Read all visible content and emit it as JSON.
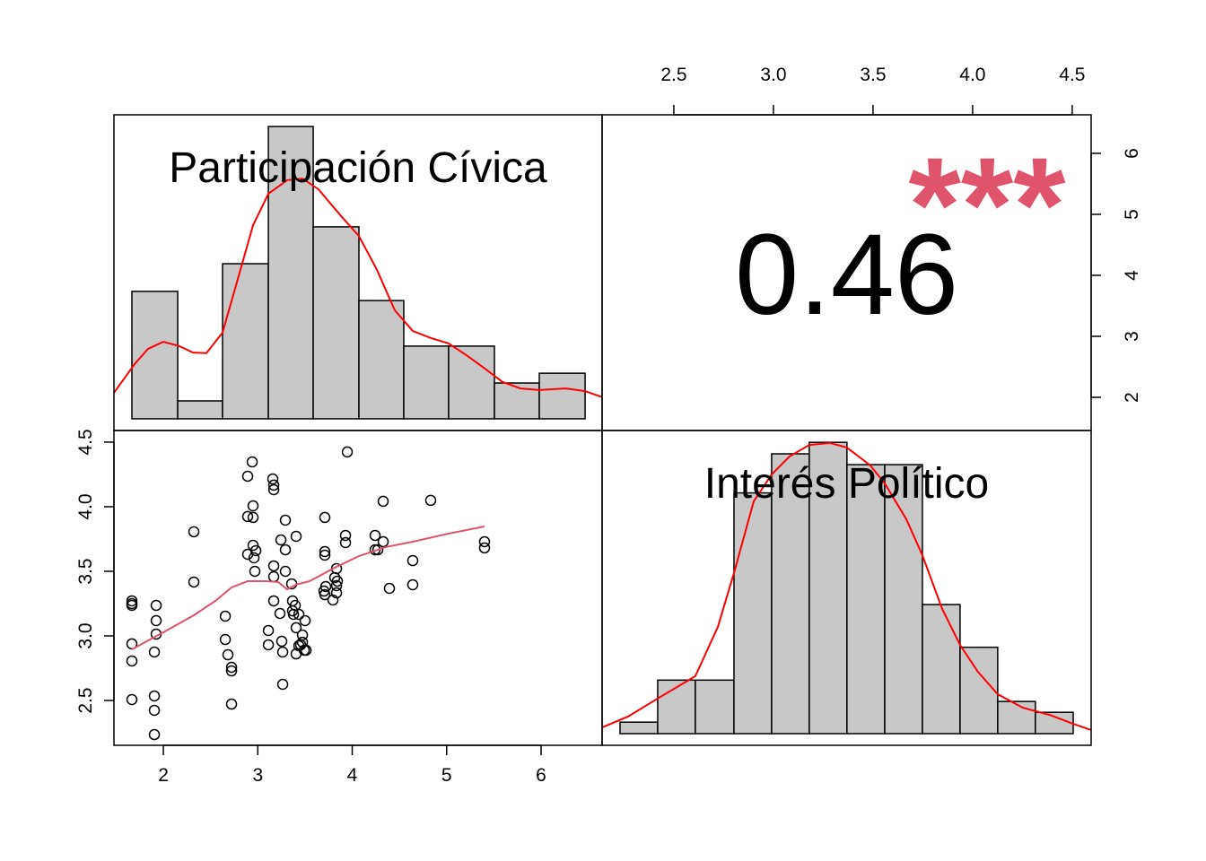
{
  "chart_data": [
    {
      "type": "histogram",
      "title": "Participación Cívica",
      "color": "#c8c8c8",
      "bins": [
        1.667,
        2.152,
        2.627,
        3.112,
        3.587,
        4.071,
        4.546,
        5.021,
        5.506,
        5.981,
        6.466
      ],
      "values": [
        0.235,
        0.033,
        0.286,
        0.539,
        0.354,
        0.218,
        0.134,
        0.134,
        0.066,
        0.084
      ],
      "xlim": [
        1.477,
        6.646
      ],
      "ylim": [
        -0.0216,
        0.5606
      ],
      "curve": {
        "color": "#ff0000",
        "x": [
          1.477,
          1.696,
          1.838,
          2.0,
          2.171,
          2.314,
          2.456,
          2.627,
          2.789,
          2.95,
          3.112,
          3.311,
          3.473,
          3.644,
          3.881,
          4.071,
          4.261,
          4.451,
          4.641,
          4.831,
          5.021,
          5.211,
          5.401,
          5.591,
          5.781,
          5.981,
          6.257,
          6.466,
          6.646
        ],
        "values": [
          0.048,
          0.101,
          0.129,
          0.142,
          0.134,
          0.122,
          0.121,
          0.159,
          0.258,
          0.357,
          0.415,
          0.44,
          0.443,
          0.423,
          0.374,
          0.337,
          0.275,
          0.2,
          0.162,
          0.149,
          0.139,
          0.117,
          0.093,
          0.068,
          0.056,
          0.053,
          0.056,
          0.051,
          0.04
        ]
      }
    },
    {
      "type": "correlation",
      "value": 0.46,
      "stars": "***",
      "stars_color": "#df536b",
      "xlim": [
        2.14,
        4.595
      ],
      "xticks": [
        2.5,
        {
          "value": 3,
          "label": "3.0"
        },
        3.5,
        {
          "value": 4,
          "label": "4.0"
        },
        4.5
      ],
      "xaxis": "top",
      "ylim": [
        1.456,
        6.632
      ],
      "yticks": [
        2,
        3,
        4,
        5,
        6
      ],
      "yaxis": "right"
    },
    {
      "type": "scatter",
      "x": [
        1.667,
        1.667,
        1.667,
        1.667,
        1.667,
        1.667,
        1.924,
        1.924,
        1.924,
        1.905,
        1.905,
        1.905,
        1.905,
        2.323,
        2.323,
        2.656,
        2.656,
        2.684,
        2.722,
        2.722,
        2.722,
        2.893,
        2.893,
        2.893,
        2.941,
        2.95,
        2.95,
        2.95,
        2.96,
        2.969,
        2.979,
        3.112,
        3.112,
        3.159,
        3.169,
        3.169,
        3.169,
        3.169,
        3.169,
        3.235,
        3.245,
        3.254,
        3.264,
        3.264,
        3.292,
        3.292,
        3.292,
        3.359,
        3.368,
        3.368,
        3.378,
        3.397,
        3.406,
        3.406,
        3.406,
        3.435,
        3.435,
        3.454,
        3.473,
        3.473,
        3.492,
        3.501,
        3.511,
        3.701,
        3.71,
        3.71,
        3.71,
        3.71,
        3.72,
        3.796,
        3.815,
        3.834,
        3.834,
        3.834,
        3.843,
        3.929,
        3.929,
        3.948,
        4.242,
        4.242,
        4.271,
        4.328,
        4.328,
        4.394,
        4.641,
        4.641,
        4.831,
        5.401,
        5.401
      ],
      "values": [
        3.271,
        3.25,
        3.236,
        2.938,
        2.806,
        2.507,
        3.236,
        3.118,
        3.014,
        2.875,
        2.535,
        2.424,
        2.236,
        3.806,
        3.417,
        3.153,
        2.972,
        2.854,
        2.757,
        2.729,
        2.472,
        4.236,
        3.924,
        3.632,
        4.347,
        4.007,
        3.917,
        3.701,
        3.604,
        3.5,
        3.66,
        3.042,
        2.931,
        4.215,
        4.167,
        4.132,
        3.542,
        3.458,
        3.271,
        3.174,
        3.743,
        2.958,
        2.875,
        2.625,
        3.896,
        3.667,
        3.5,
        3.403,
        3.271,
        3.194,
        3.167,
        3.236,
        3.771,
        3.063,
        2.861,
        3.167,
        2.924,
        2.931,
        3.007,
        2.951,
        2.889,
        3.118,
        2.889,
        3.347,
        3.917,
        3.653,
        3.625,
        3.319,
        3.382,
        3.278,
        3.451,
        3.521,
        3.389,
        3.333,
        3.424,
        3.778,
        3.722,
        4.424,
        3.778,
        3.667,
        3.667,
        3.729,
        4.042,
        3.368,
        3.583,
        3.396,
        4.049,
        3.729,
        3.681
      ],
      "xlim": [
        1.477,
        6.646
      ],
      "xticks": [
        2,
        3,
        4,
        5,
        6
      ],
      "xaxis": "bottom",
      "ylim": [
        2.153,
        4.59
      ],
      "yticks": [
        2.5,
        {
          "value": 3,
          "label": "3.0"
        },
        3.5,
        {
          "value": 4,
          "label": "4.0"
        },
        4.5
      ],
      "yaxis": "left",
      "curve": {
        "color": "#df536b",
        "x": [
          1.667,
          2.0,
          2.323,
          2.551,
          2.722,
          2.893,
          3.074,
          3.216,
          3.311,
          3.406,
          3.549,
          3.691,
          3.834,
          4.071,
          4.356,
          4.641,
          5.021,
          5.401
        ],
        "values": [
          2.896,
          3.028,
          3.16,
          3.271,
          3.375,
          3.424,
          3.424,
          3.417,
          3.361,
          3.396,
          3.424,
          3.479,
          3.535,
          3.618,
          3.688,
          3.729,
          3.792,
          3.847
        ]
      }
    },
    {
      "type": "histogram",
      "title": "Interés Político",
      "color": "#c8c8c8",
      "bins": [
        2.23,
        2.419,
        2.608,
        2.802,
        2.991,
        3.18,
        3.369,
        3.559,
        3.748,
        3.937,
        4.126,
        4.315,
        4.505
      ],
      "values": [
        0.035,
        0.163,
        0.163,
        0.733,
        0.852,
        0.887,
        0.819,
        0.819,
        0.393,
        0.263,
        0.098,
        0.065
      ],
      "xlim": [
        2.14,
        4.595
      ],
      "ylim": [
        -0.0355,
        0.923
      ],
      "curve": {
        "color": "#ff0000",
        "x": [
          2.14,
          2.27,
          2.419,
          2.608,
          2.721,
          2.802,
          2.901,
          2.991,
          3.081,
          3.18,
          3.284,
          3.369,
          3.486,
          3.559,
          3.667,
          3.748,
          3.847,
          3.937,
          4.027,
          4.126,
          4.252,
          4.387,
          4.505,
          4.595
        ],
        "values": [
          0.019,
          0.052,
          0.107,
          0.175,
          0.325,
          0.489,
          0.707,
          0.789,
          0.844,
          0.879,
          0.885,
          0.871,
          0.817,
          0.762,
          0.653,
          0.543,
          0.38,
          0.27,
          0.188,
          0.12,
          0.079,
          0.057,
          0.03,
          0.011
        ]
      }
    }
  ]
}
